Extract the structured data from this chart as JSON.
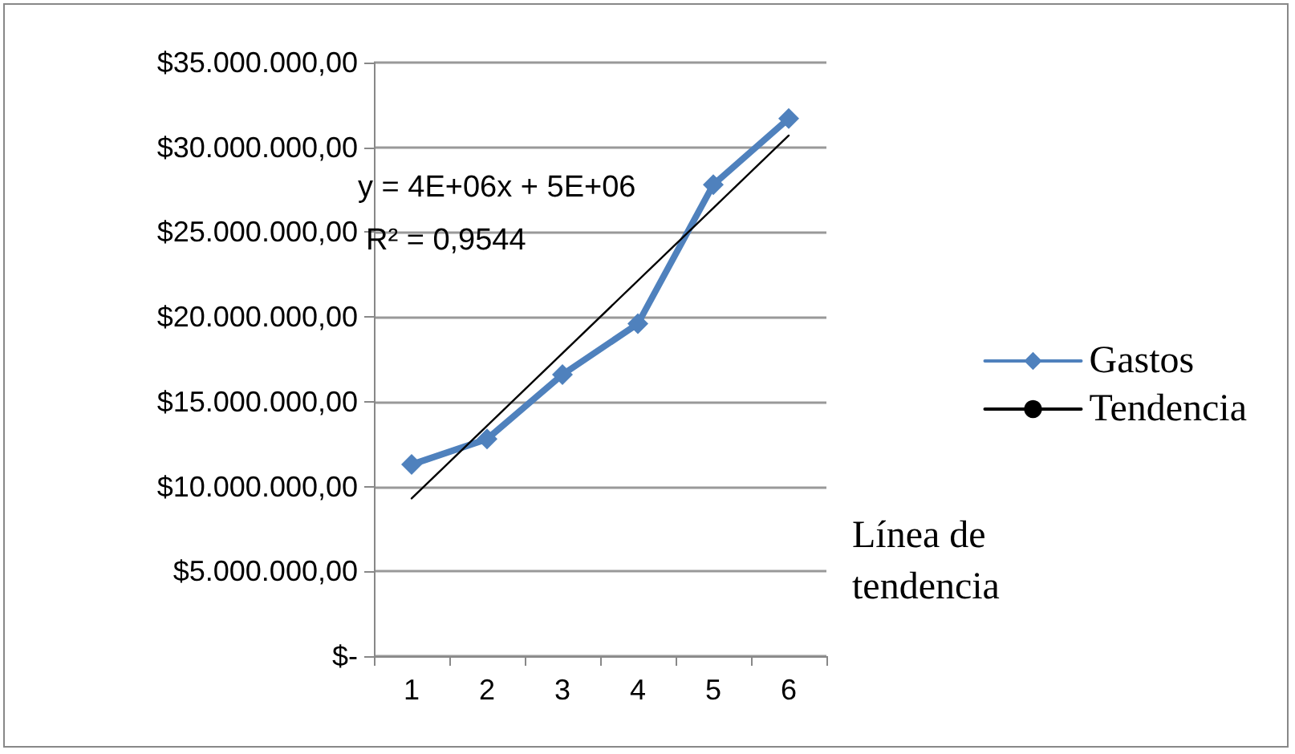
{
  "chart_data": {
    "type": "line",
    "categories": [
      "1",
      "2",
      "3",
      "4",
      "5",
      "6"
    ],
    "series": [
      {
        "name": "Gastos",
        "color": "#4f81bd",
        "values": [
          11300000,
          12800000,
          16600000,
          19600000,
          27800000,
          31700000
        ],
        "marker": "diamond"
      },
      {
        "name": "Tendencia",
        "type": "line",
        "color": "#000000",
        "x": [
          "1",
          "6"
        ],
        "values": [
          9300000,
          30700000
        ],
        "marker": "none"
      }
    ],
    "ylim": [
      0,
      35000000
    ],
    "yticks": [
      {
        "value": 0,
        "label": "$-"
      },
      {
        "value": 5000000,
        "label": "$5.000.000,00"
      },
      {
        "value": 10000000,
        "label": "$10.000.000,00"
      },
      {
        "value": 15000000,
        "label": "$15.000.000,00"
      },
      {
        "value": 20000000,
        "label": "$20.000.000,00"
      },
      {
        "value": 25000000,
        "label": "$25.000.000,00"
      },
      {
        "value": 30000000,
        "label": "$30.000.000,00"
      },
      {
        "value": 35000000,
        "label": "$35.000.000,00"
      }
    ],
    "annotations": [
      "y = 4E+06x + 5E+06",
      "R² = 0,9544",
      "Línea de tendencia"
    ],
    "grid": "y",
    "legend": "right",
    "line_style": "solid"
  }
}
